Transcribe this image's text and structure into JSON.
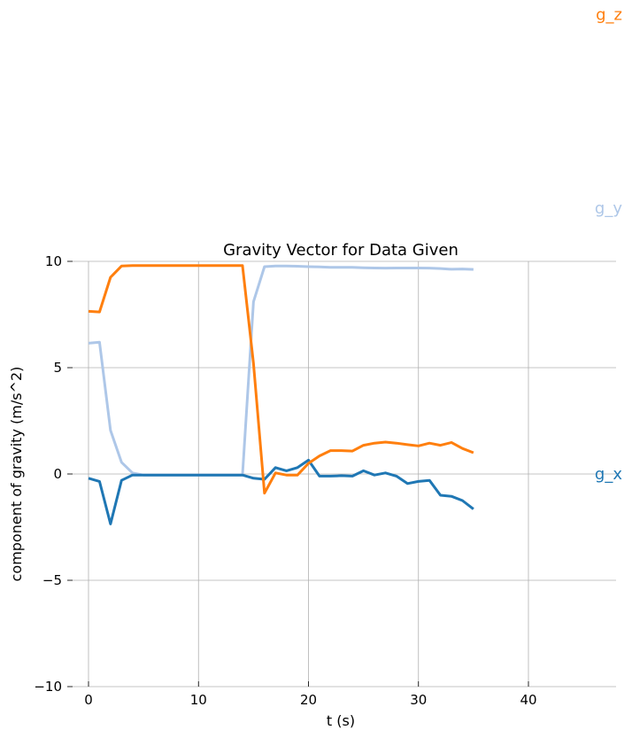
{
  "chart_data": {
    "type": "line",
    "title": "Gravity Vector for Data Given",
    "xlabel": "t (s)",
    "ylabel": "component of gravity (m/s^2)",
    "xlim": [
      -1.5,
      48
    ],
    "ylim": [
      -10,
      10
    ],
    "xticks": [
      0,
      10,
      20,
      30,
      40
    ],
    "xtick_labels": [
      "0",
      "10",
      "20",
      "30",
      "40"
    ],
    "yticks": [
      10,
      5,
      0,
      -5,
      -10
    ],
    "ytick_labels": [
      "10",
      "5",
      "0",
      "−5",
      "−10"
    ],
    "grid": true,
    "x": [
      0,
      1,
      2,
      3,
      4,
      5,
      6,
      7,
      8,
      9,
      10,
      11,
      12,
      13,
      14,
      15,
      16,
      17,
      18,
      19,
      20,
      21,
      22,
      23,
      24,
      25,
      26,
      27,
      28,
      29,
      30,
      31,
      32,
      33,
      34,
      35
    ],
    "series": [
      {
        "name": "g_x",
        "color": "#1f77b4",
        "label_y": 0,
        "values": [
          -0.2,
          -0.35,
          -2.35,
          -0.3,
          -0.05,
          -0.05,
          -0.05,
          -0.05,
          -0.05,
          -0.05,
          -0.05,
          -0.05,
          -0.05,
          -0.05,
          -0.05,
          -0.2,
          -0.25,
          0.3,
          0.15,
          0.3,
          0.65,
          -0.1,
          -0.1,
          -0.08,
          -0.1,
          0.15,
          -0.05,
          0.05,
          -0.1,
          -0.45,
          -0.35,
          -0.3,
          -1.0,
          -1.05,
          -1.25,
          -1.65
        ]
      },
      {
        "name": "g_y",
        "color": "#aec7e8",
        "label_y": 12.5,
        "values": [
          6.15,
          6.2,
          2.05,
          0.55,
          0.05,
          -0.05,
          -0.05,
          -0.05,
          -0.05,
          -0.05,
          -0.05,
          -0.05,
          -0.05,
          -0.05,
          -0.05,
          8.1,
          9.75,
          9.78,
          9.78,
          9.77,
          9.75,
          9.74,
          9.72,
          9.72,
          9.72,
          9.7,
          9.69,
          9.68,
          9.69,
          9.69,
          9.69,
          9.68,
          9.66,
          9.63,
          9.64,
          9.62
        ]
      },
      {
        "name": "g_z",
        "color": "#ff7f0e",
        "label_y": 21.6,
        "values": [
          7.65,
          7.62,
          9.25,
          9.78,
          9.8,
          9.8,
          9.8,
          9.8,
          9.8,
          9.8,
          9.8,
          9.8,
          9.8,
          9.8,
          9.8,
          5.2,
          -0.9,
          0.05,
          -0.05,
          -0.05,
          0.5,
          0.85,
          1.1,
          1.1,
          1.08,
          1.35,
          1.45,
          1.5,
          1.45,
          1.38,
          1.32,
          1.45,
          1.35,
          1.48,
          1.2,
          1.0
        ]
      }
    ]
  }
}
